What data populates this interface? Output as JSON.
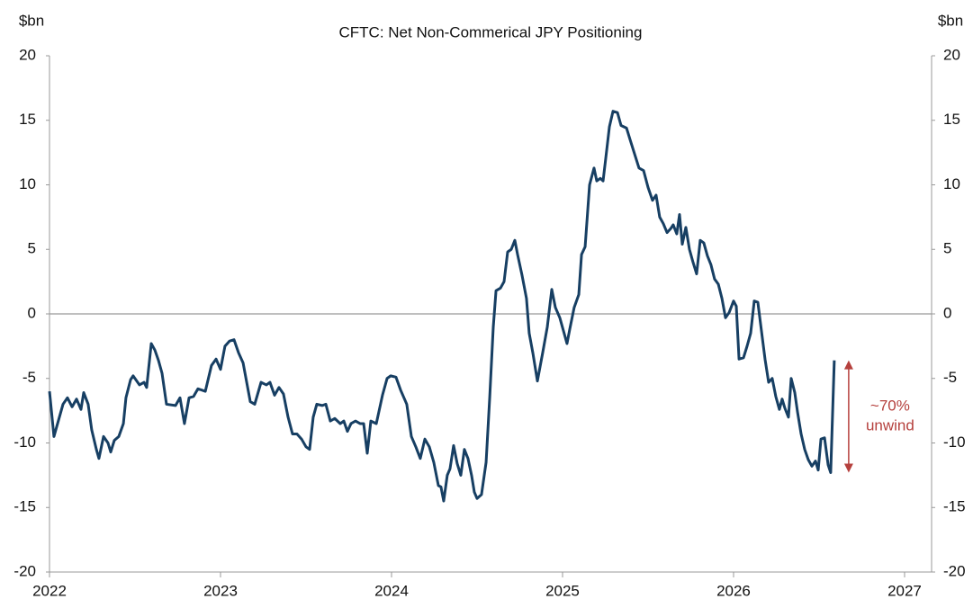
{
  "chart_data": {
    "type": "line",
    "title": "CFTC: Net Non-Commerical JPY Positioning",
    "ylabel": "$bn",
    "y2label": "$bn",
    "color": "#173f63",
    "annotation_color": "#b5403d",
    "annotation": [
      "~70%",
      "unwind"
    ],
    "xlim": [
      2022,
      2027.158
    ],
    "xticks": [
      2022,
      2023,
      2024,
      2025,
      2026,
      2027
    ],
    "ylim": [
      -20,
      20
    ],
    "yticks": [
      -20,
      -15,
      -10,
      -5,
      0,
      5,
      10,
      15,
      20
    ],
    "y2lim": [
      -20,
      20
    ],
    "y2ticks": [
      -20,
      -15,
      -10,
      -5,
      0,
      5,
      10,
      15,
      20
    ],
    "x": [
      2022,
      2022.026,
      2022.079,
      2022.105,
      2022.132,
      2022.158,
      2022.184,
      2022.2,
      2022.226,
      2022.247,
      2022.274,
      2022.289,
      2022.316,
      2022.342,
      2022.358,
      2022.379,
      2022.405,
      2022.432,
      2022.447,
      2022.474,
      2022.489,
      2022.526,
      2022.553,
      2022.568,
      2022.595,
      2022.616,
      2022.637,
      2022.658,
      2022.684,
      2022.737,
      2022.763,
      2022.789,
      2022.816,
      2022.842,
      2022.868,
      2022.911,
      2022.947,
      2022.974,
      2023,
      2023.026,
      2023.053,
      2023.079,
      2023.105,
      2023.132,
      2023.174,
      2023.2,
      2023.237,
      2023.268,
      2023.289,
      2023.316,
      2023.342,
      2023.368,
      2023.395,
      2023.421,
      2023.447,
      2023.474,
      2023.5,
      2023.521,
      2023.542,
      2023.563,
      2023.595,
      2023.616,
      2023.642,
      2023.668,
      2023.7,
      2023.721,
      2023.742,
      2023.763,
      2023.789,
      2023.816,
      2023.837,
      2023.858,
      2023.879,
      2023.911,
      2023.947,
      2023.974,
      2023.995,
      2024.026,
      2024.053,
      2024.089,
      2024.116,
      2024.142,
      2024.168,
      2024.195,
      2024.221,
      2024.247,
      2024.274,
      2024.289,
      2024.305,
      2024.326,
      2024.342,
      2024.363,
      2024.384,
      2024.405,
      2024.426,
      2024.447,
      2024.468,
      2024.484,
      2024.5,
      2024.526,
      2024.553,
      2024.574,
      2024.595,
      2024.611,
      2024.637,
      2024.658,
      2024.679,
      2024.7,
      2024.721,
      2024.737,
      2024.763,
      2024.789,
      2024.805,
      2024.826,
      2024.853,
      2024.884,
      2024.911,
      2024.937,
      2024.958,
      2024.984,
      2025.005,
      2025.026,
      2025.042,
      2025.068,
      2025.095,
      2025.111,
      2025.132,
      2025.158,
      2025.184,
      2025.2,
      2025.221,
      2025.237,
      2025.253,
      2025.274,
      2025.295,
      2025.321,
      2025.342,
      2025.374,
      2025.395,
      2025.421,
      2025.447,
      2025.474,
      2025.5,
      2025.526,
      2025.547,
      2025.568,
      2025.589,
      2025.611,
      2025.632,
      2025.647,
      2025.668,
      2025.684,
      2025.7,
      2025.721,
      2025.742,
      2025.763,
      2025.784,
      2025.805,
      2025.826,
      2025.847,
      2025.868,
      2025.889,
      2025.911,
      2025.932,
      2025.953,
      2025.974,
      2026,
      2026.016,
      2026.032,
      2026.058,
      2026.079,
      2026.1,
      2026.121,
      2026.142,
      2026.163,
      2026.184,
      2026.205,
      2026.226,
      2026.247,
      2026.268,
      2026.284,
      2026.3,
      2026.321,
      2026.337,
      2026.358,
      2026.374,
      2026.395,
      2026.416,
      2026.437,
      2026.458,
      2026.479,
      2026.495,
      2026.511,
      2026.532,
      2026.553,
      2026.568,
      2026.589
    ],
    "values": [
      -6,
      -9.5,
      -7,
      -6.5,
      -7.2,
      -6.6,
      -7.4,
      -6.1,
      -7,
      -9,
      -10.5,
      -11.2,
      -9.5,
      -10,
      -10.7,
      -9.8,
      -9.5,
      -8.5,
      -6.5,
      -5.1,
      -4.8,
      -5.5,
      -5.3,
      -5.7,
      -2.3,
      -2.8,
      -3.6,
      -4.6,
      -7,
      -7.1,
      -6.5,
      -8.5,
      -6.5,
      -6.4,
      -5.8,
      -6,
      -4,
      -3.5,
      -4.3,
      -2.5,
      -2.1,
      -2,
      -3,
      -3.8,
      -6.8,
      -7,
      -5.3,
      -5.5,
      -5.3,
      -6.3,
      -5.7,
      -6.2,
      -8,
      -9.3,
      -9.3,
      -9.7,
      -10.3,
      -10.5,
      -8,
      -7,
      -7.1,
      -7,
      -8.3,
      -8.1,
      -8.5,
      -8.3,
      -9.1,
      -8.5,
      -8.3,
      -8.5,
      -8.5,
      -10.8,
      -8.3,
      -8.5,
      -6.3,
      -5,
      -4.8,
      -4.9,
      -5.9,
      -7,
      -9.5,
      -10.3,
      -11.2,
      -9.7,
      -10.3,
      -11.5,
      -13.3,
      -13.4,
      -14.5,
      -12.5,
      -12,
      -10.2,
      -11.6,
      -12.5,
      -10.5,
      -11.2,
      -12.5,
      -13.8,
      -14.3,
      -14,
      -11.5,
      -6.5,
      -1,
      1.8,
      2,
      2.5,
      4.8,
      5,
      5.7,
      4.6,
      3,
      1.2,
      -1.5,
      -3,
      -5.2,
      -3,
      -1,
      1.9,
      0.5,
      -0.3,
      -1.3,
      -2.3,
      -1.2,
      0.5,
      1.5,
      4.6,
      5.2,
      10,
      11.3,
      10.3,
      10.5,
      10.3,
      12.1,
      14.5,
      15.7,
      15.6,
      14.6,
      14.4,
      13.5,
      12.4,
      11.3,
      11.1,
      9.8,
      8.8,
      9.2,
      7.5,
      7,
      6.3,
      6.6,
      6.9,
      6.2,
      7.7,
      5.4,
      6.7,
      5,
      4,
      3.1,
      5.7,
      5.5,
      4.5,
      3.8,
      2.7,
      2.3,
      1.2,
      -0.3,
      0.1,
      1,
      0.6,
      -3.5,
      -3.4,
      -2.5,
      -1.5,
      1,
      0.9,
      -1.3,
      -3.5,
      -5.3,
      -5,
      -6.4,
      -7.4,
      -6.6,
      -7.3,
      -8,
      -5,
      -6.1,
      -7.6,
      -9.3,
      -10.5,
      -11.3,
      -11.8,
      -11.4,
      -12.1,
      -9.7,
      -9.6,
      -11.7,
      -12.3,
      -3.6
    ]
  }
}
